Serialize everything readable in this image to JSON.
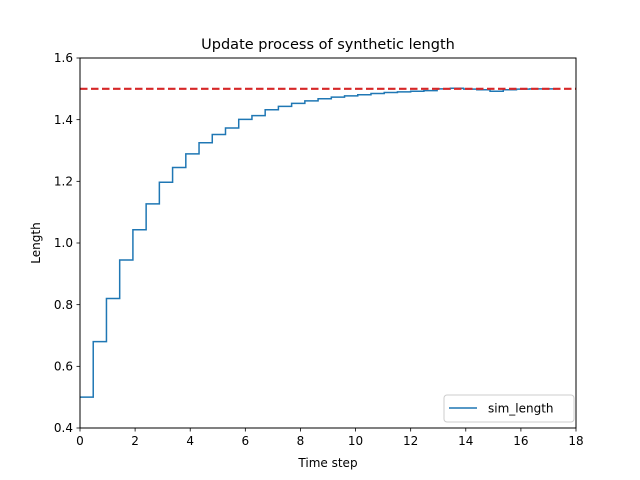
{
  "chart_data": {
    "type": "line",
    "title": "Update process of synthetic length",
    "xlabel": "Time step",
    "ylabel": "Length",
    "xlim": [
      0,
      18
    ],
    "ylim": [
      0.4,
      1.6
    ],
    "xticks": [
      0,
      2,
      4,
      6,
      8,
      10,
      12,
      14,
      16,
      18
    ],
    "yticks": [
      0.4,
      0.6,
      0.8,
      1.0,
      1.2,
      1.4,
      1.6
    ],
    "xtick_labels": [
      "0",
      "2",
      "4",
      "6",
      "8",
      "10",
      "12",
      "14",
      "16",
      "18"
    ],
    "ytick_labels": [
      "0.4",
      "0.6",
      "0.8",
      "1.0",
      "1.2",
      "1.4",
      "1.6"
    ],
    "grid": false,
    "legend_position": "lower-right",
    "series": [
      {
        "name": "sim_length",
        "color": "#1f77b4",
        "style": "steps",
        "x": [
          0.0,
          0.48,
          0.96,
          1.44,
          1.92,
          2.4,
          2.88,
          3.36,
          3.84,
          4.32,
          4.8,
          5.28,
          5.76,
          6.24,
          6.72,
          7.2,
          7.68,
          8.16,
          8.64,
          9.12,
          9.6,
          10.08,
          10.56,
          11.04,
          11.52,
          12.0,
          12.48,
          12.96,
          13.44,
          13.92,
          14.4,
          14.88,
          15.36,
          15.84,
          16.32,
          16.8,
          17.28
        ],
        "y": [
          0.5,
          0.68,
          0.82,
          0.945,
          1.043,
          1.127,
          1.197,
          1.245,
          1.289,
          1.325,
          1.352,
          1.373,
          1.401,
          1.413,
          1.432,
          1.443,
          1.453,
          1.461,
          1.468,
          1.473,
          1.477,
          1.481,
          1.485,
          1.488,
          1.49,
          1.492,
          1.494,
          1.5,
          1.502,
          1.499,
          1.497,
          1.492,
          1.497,
          1.499,
          1.5,
          1.5,
          1.5
        ]
      },
      {
        "name": "",
        "color": "#d62728",
        "style": "dashed",
        "x": [
          0,
          18
        ],
        "y": [
          1.5,
          1.5
        ]
      }
    ]
  }
}
